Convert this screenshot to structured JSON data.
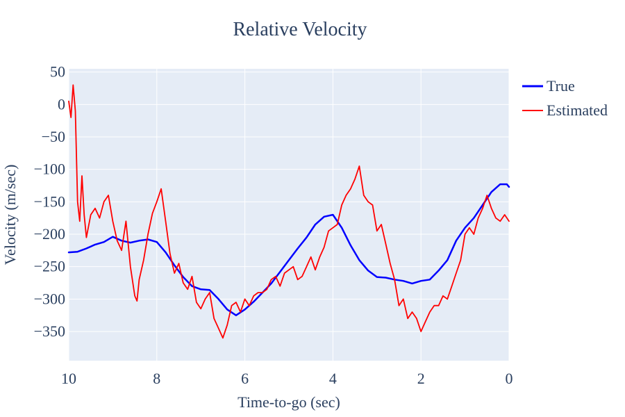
{
  "chart_data": {
    "type": "line",
    "title": "Relative Velocity",
    "xlabel": "Time-to-go (sec)",
    "ylabel": "Velocity (m/sec)",
    "xlim": [
      10,
      0
    ],
    "ylim": [
      -395,
      55
    ],
    "x_ticks": [
      10,
      8,
      6,
      4,
      2,
      0
    ],
    "x_tick_labels": [
      "10",
      "8",
      "6",
      "4",
      "2",
      "0"
    ],
    "y_ticks": [
      50,
      0,
      -50,
      -100,
      -150,
      -200,
      -250,
      -300,
      -350
    ],
    "y_tick_labels": [
      "50",
      "0",
      "−50",
      "−100",
      "−150",
      "−200",
      "−250",
      "−300",
      "−350"
    ],
    "grid": true,
    "legend_position": "top-right",
    "background_color": "#e5ecf6",
    "series": [
      {
        "name": "True",
        "color": "#0000ff",
        "x": [
          10,
          9.8,
          9.6,
          9.4,
          9.2,
          9.0,
          8.8,
          8.6,
          8.4,
          8.2,
          8.0,
          7.8,
          7.6,
          7.4,
          7.2,
          7.0,
          6.8,
          6.6,
          6.4,
          6.2,
          6.0,
          5.8,
          5.6,
          5.4,
          5.2,
          5.0,
          4.8,
          4.6,
          4.4,
          4.2,
          4.0,
          3.8,
          3.6,
          3.4,
          3.2,
          3.0,
          2.8,
          2.6,
          2.4,
          2.2,
          2.0,
          1.8,
          1.6,
          1.4,
          1.2,
          1.0,
          0.8,
          0.6,
          0.4,
          0.2,
          0.05,
          0
        ],
        "y": [
          -228,
          -227,
          -222,
          -216,
          -212,
          -204,
          -210,
          -213,
          -210,
          -208,
          -212,
          -228,
          -248,
          -266,
          -280,
          -285,
          -286,
          -300,
          -316,
          -325,
          -316,
          -304,
          -290,
          -276,
          -258,
          -240,
          -222,
          -205,
          -185,
          -173,
          -170,
          -190,
          -217,
          -240,
          -256,
          -266,
          -267,
          -270,
          -272,
          -276,
          -272,
          -270,
          -256,
          -240,
          -210,
          -190,
          -175,
          -155,
          -135,
          -123,
          -123,
          -127
        ]
      },
      {
        "name": "Estimated",
        "color": "#ff0000",
        "x": [
          10.0,
          9.95,
          9.9,
          9.85,
          9.8,
          9.75,
          9.7,
          9.65,
          9.6,
          9.5,
          9.4,
          9.3,
          9.2,
          9.1,
          9.0,
          8.9,
          8.8,
          8.7,
          8.6,
          8.5,
          8.45,
          8.4,
          8.3,
          8.2,
          8.1,
          8.0,
          7.9,
          7.8,
          7.7,
          7.6,
          7.5,
          7.4,
          7.3,
          7.2,
          7.1,
          7.0,
          6.9,
          6.8,
          6.7,
          6.6,
          6.5,
          6.4,
          6.3,
          6.2,
          6.1,
          6.0,
          5.9,
          5.8,
          5.7,
          5.6,
          5.5,
          5.4,
          5.3,
          5.2,
          5.1,
          5.0,
          4.9,
          4.8,
          4.7,
          4.6,
          4.5,
          4.4,
          4.3,
          4.2,
          4.1,
          4.0,
          3.9,
          3.8,
          3.7,
          3.6,
          3.5,
          3.4,
          3.3,
          3.2,
          3.1,
          3.0,
          2.9,
          2.8,
          2.7,
          2.6,
          2.5,
          2.4,
          2.3,
          2.2,
          2.1,
          2.0,
          1.9,
          1.8,
          1.7,
          1.6,
          1.5,
          1.4,
          1.3,
          1.2,
          1.1,
          1.0,
          0.9,
          0.8,
          0.7,
          0.6,
          0.5,
          0.4,
          0.3,
          0.2,
          0.1,
          0.0
        ],
        "y": [
          5,
          -20,
          30,
          -10,
          -150,
          -180,
          -110,
          -170,
          -205,
          -170,
          -160,
          -175,
          -150,
          -140,
          -180,
          -210,
          -225,
          -180,
          -250,
          -295,
          -303,
          -270,
          -240,
          -200,
          -168,
          -150,
          -130,
          -180,
          -230,
          -260,
          -245,
          -275,
          -285,
          -265,
          -305,
          -315,
          -300,
          -290,
          -330,
          -345,
          -360,
          -340,
          -310,
          -305,
          -320,
          -300,
          -310,
          -295,
          -290,
          -290,
          -285,
          -270,
          -265,
          -280,
          -260,
          -255,
          -250,
          -270,
          -265,
          -250,
          -235,
          -255,
          -235,
          -220,
          -195,
          -190,
          -185,
          -155,
          -140,
          -130,
          -115,
          -95,
          -140,
          -150,
          -155,
          -195,
          -185,
          -215,
          -245,
          -270,
          -310,
          -300,
          -330,
          -320,
          -330,
          -350,
          -335,
          -320,
          -310,
          -310,
          -295,
          -300,
          -280,
          -260,
          -240,
          -200,
          -190,
          -200,
          -175,
          -160,
          -140,
          -160,
          -175,
          -180,
          -170,
          -180
        ]
      }
    ]
  }
}
